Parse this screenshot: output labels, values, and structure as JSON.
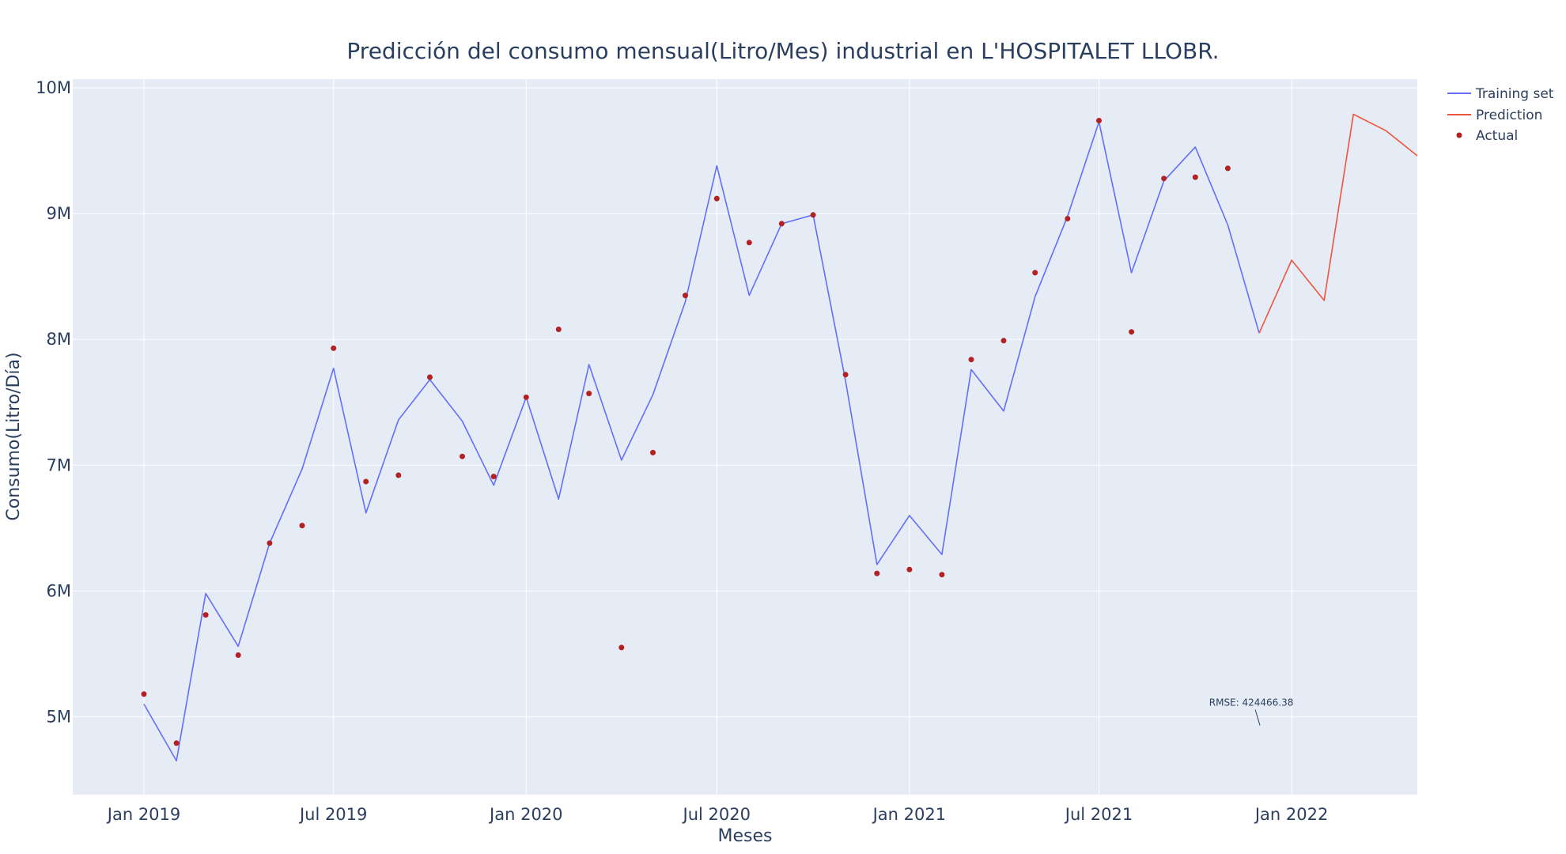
{
  "chart_data": {
    "type": "line",
    "title": "Predicción del consumo mensual(Litro/Mes) industrial en L'HOSPITALET LLOBR.",
    "xlabel": "Meses",
    "ylabel": "Consumo(Litro/Día)",
    "xlim": [
      "2018-10-25",
      "2022-05-01"
    ],
    "ylim": [
      4380000,
      10070000
    ],
    "x_ticks": [
      {
        "date": "2019-01-01",
        "label": "Jan 2019"
      },
      {
        "date": "2019-07-01",
        "label": "Jul 2019"
      },
      {
        "date": "2020-01-01",
        "label": "Jan 2020"
      },
      {
        "date": "2020-07-01",
        "label": "Jul 2020"
      },
      {
        "date": "2021-01-01",
        "label": "Jan 2021"
      },
      {
        "date": "2021-07-01",
        "label": "Jul 2021"
      },
      {
        "date": "2022-01-01",
        "label": "Jan 2022"
      }
    ],
    "y_ticks": [
      {
        "value": 5000000,
        "label": "5M"
      },
      {
        "value": 6000000,
        "label": "6M"
      },
      {
        "value": 7000000,
        "label": "7M"
      },
      {
        "value": 8000000,
        "label": "8M"
      },
      {
        "value": 9000000,
        "label": "9M"
      },
      {
        "value": 10000000,
        "label": "10M"
      }
    ],
    "grid": true,
    "legend_position": "top-right",
    "series": [
      {
        "name": "Training set",
        "type": "line",
        "color": "#636efa",
        "x": [
          "2019-01-01",
          "2019-02-01",
          "2019-03-01",
          "2019-04-01",
          "2019-05-01",
          "2019-06-01",
          "2019-07-01",
          "2019-08-01",
          "2019-09-01",
          "2019-10-01",
          "2019-11-01",
          "2019-12-01",
          "2020-01-01",
          "2020-02-01",
          "2020-03-01",
          "2020-04-01",
          "2020-05-01",
          "2020-06-01",
          "2020-07-01",
          "2020-08-01",
          "2020-09-01",
          "2020-10-01",
          "2020-11-01",
          "2020-12-01",
          "2021-01-01",
          "2021-02-01",
          "2021-03-01",
          "2021-04-01",
          "2021-05-01",
          "2021-06-01",
          "2021-07-01",
          "2021-08-01",
          "2021-09-01",
          "2021-10-01",
          "2021-11-01",
          "2021-12-01"
        ],
        "y": [
          5100000,
          4650000,
          5980000,
          5560000,
          6380000,
          6970000,
          7770000,
          6620000,
          7360000,
          7680000,
          7350000,
          6840000,
          7540000,
          6730000,
          7800000,
          7040000,
          7560000,
          8300000,
          9380000,
          8350000,
          8920000,
          8990000,
          7670000,
          6210000,
          6600000,
          6290000,
          7760000,
          7430000,
          8340000,
          8980000,
          9730000,
          8530000,
          9260000,
          9530000,
          8910000,
          8050000
        ]
      },
      {
        "name": "Prediction",
        "type": "line",
        "color": "#ef553b",
        "x": [
          "2021-12-01",
          "2022-01-01",
          "2022-02-01",
          "2022-03-01",
          "2022-04-01",
          "2022-05-01"
        ],
        "y": [
          8050000,
          8630000,
          8310000,
          9790000,
          9660000,
          9460000
        ]
      },
      {
        "name": "Actual",
        "type": "scatter",
        "color": "#b22222",
        "x": [
          "2019-01-01",
          "2019-02-01",
          "2019-03-01",
          "2019-04-01",
          "2019-05-01",
          "2019-06-01",
          "2019-07-01",
          "2019-08-01",
          "2019-09-01",
          "2019-10-01",
          "2019-11-01",
          "2019-12-01",
          "2020-01-01",
          "2020-02-01",
          "2020-03-01",
          "2020-04-01",
          "2020-05-01",
          "2020-06-01",
          "2020-07-01",
          "2020-08-01",
          "2020-09-01",
          "2020-10-01",
          "2020-11-01",
          "2020-12-01",
          "2021-01-01",
          "2021-02-01",
          "2021-03-01",
          "2021-04-01",
          "2021-05-01",
          "2021-06-01",
          "2021-07-01",
          "2021-08-01",
          "2021-09-01",
          "2021-10-01",
          "2021-11-01"
        ],
        "y": [
          5180000,
          4790000,
          5810000,
          5490000,
          6380000,
          6520000,
          7930000,
          6870000,
          6920000,
          7700000,
          7070000,
          6910000,
          7540000,
          8080000,
          7570000,
          5550000,
          7100000,
          8350000,
          9120000,
          8770000,
          8920000,
          8990000,
          7720000,
          6140000,
          6170000,
          6130000,
          7840000,
          7990000,
          8530000,
          8960000,
          9740000,
          8060000,
          9280000,
          9290000,
          9360000
        ]
      }
    ],
    "annotations": [
      {
        "text": "RMSE: 424466.38",
        "x": "2021-12-01",
        "y": 4930000
      }
    ]
  }
}
